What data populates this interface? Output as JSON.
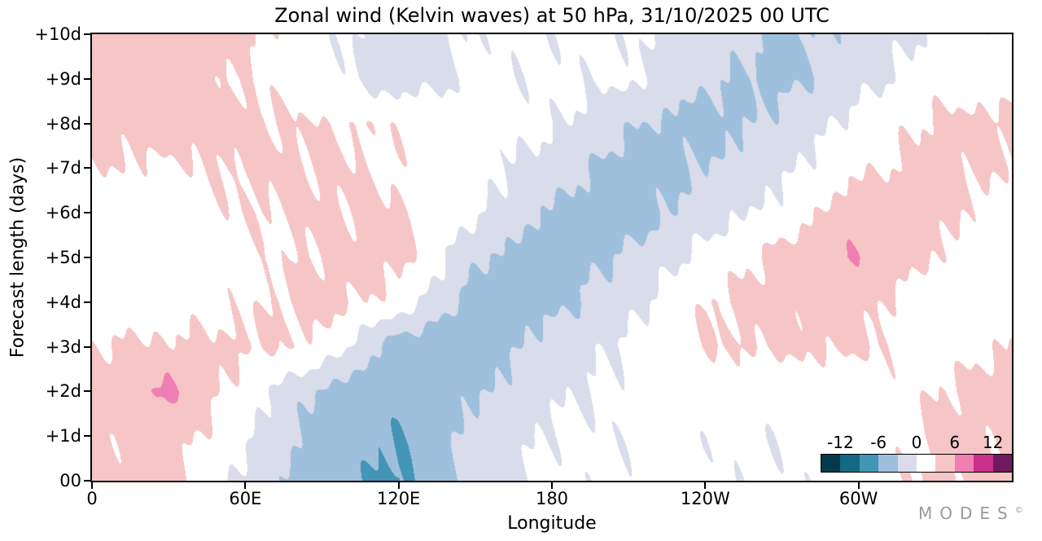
{
  "logo": {
    "text": "MODES",
    "mark": "©"
  },
  "chart_data": {
    "type": "heatmap",
    "title": "Zonal wind (Kelvin waves) at 50 hPa,  31/10/2025  00 UTC",
    "xlabel": "Longitude",
    "ylabel": "Forecast length (days)",
    "xlim_deg": [
      0,
      360
    ],
    "ylim_days": [
      0,
      10
    ],
    "x_ticks": [
      {
        "label": "0",
        "deg": 0
      },
      {
        "label": "60E",
        "deg": 60
      },
      {
        "label": "120E",
        "deg": 120
      },
      {
        "label": "180",
        "deg": 180
      },
      {
        "label": "120W",
        "deg": 240
      },
      {
        "label": "60W",
        "deg": 300
      }
    ],
    "y_ticks": [
      {
        "label": "00",
        "day": 0
      },
      {
        "label": "+1d",
        "day": 1
      },
      {
        "label": "+2d",
        "day": 2
      },
      {
        "label": "+3d",
        "day": 3
      },
      {
        "label": "+4d",
        "day": 4
      },
      {
        "label": "+5d",
        "day": 5
      },
      {
        "label": "+6d",
        "day": 6
      },
      {
        "label": "+7d",
        "day": 7
      },
      {
        "label": "+8d",
        "day": 8
      },
      {
        "label": "+9d",
        "day": 9
      },
      {
        "label": "+10d",
        "day": 10
      }
    ],
    "x_deg": [
      0,
      30,
      60,
      90,
      120,
      150,
      180,
      210,
      240,
      270,
      300,
      330,
      360
    ],
    "y_days": [
      0,
      1,
      2,
      3,
      4,
      5,
      6,
      7,
      8,
      9,
      10
    ],
    "values_by_forecast_day": [
      [
        3.5,
        4.0,
        -1.0,
        -5.0,
        -6.8,
        -1.5,
        0.8,
        0.5,
        0.5,
        0.5,
        1.0,
        3.5,
        3.5
      ],
      [
        3.5,
        4.5,
        0.5,
        -4.5,
        -6.0,
        -2.0,
        0.5,
        0.5,
        0.5,
        0.5,
        1.0,
        3.8,
        3.5
      ],
      [
        4.5,
        6.5,
        1.5,
        -3.5,
        -5.5,
        -3.5,
        -0.5,
        0.5,
        1.5,
        1.0,
        1.0,
        3.0,
        4.5
      ],
      [
        3.0,
        3.5,
        3.5,
        2.5,
        -5.0,
        -5.0,
        -1.5,
        0.5,
        3.0,
        3.5,
        3.5,
        1.5,
        3.0
      ],
      [
        1.0,
        1.5,
        2.5,
        4.0,
        2.0,
        -4.5,
        -4.0,
        -1.0,
        3.0,
        4.0,
        4.0,
        1.0,
        1.0
      ],
      [
        1.0,
        1.0,
        2.0,
        3.5,
        4.0,
        -2.5,
        -5.0,
        -2.5,
        1.0,
        4.0,
        6.0,
        3.0,
        1.0
      ],
      [
        1.5,
        1.0,
        3.0,
        3.5,
        3.5,
        0.5,
        -3.5,
        -5.0,
        -1.5,
        1.0,
        5.0,
        4.0,
        1.5
      ],
      [
        3.0,
        2.5,
        3.5,
        3.5,
        2.5,
        1.0,
        -1.5,
        -4.5,
        -3.0,
        -0.5,
        2.5,
        4.0,
        3.0
      ],
      [
        4.0,
        4.5,
        3.5,
        3.0,
        2.5,
        1.0,
        0.5,
        -2.5,
        -4.5,
        -2.0,
        1.0,
        3.5,
        4.0
      ],
      [
        4.0,
        4.0,
        3.0,
        1.0,
        -1.5,
        0.5,
        0.5,
        0.5,
        -2.5,
        -4.0,
        -1.0,
        1.5,
        1.5
      ],
      [
        4.0,
        4.5,
        3.5,
        1.0,
        -1.5,
        0.5,
        0.5,
        0.5,
        -1.5,
        -3.5,
        -2.0,
        0.5,
        1.0
      ]
    ],
    "colorbar": {
      "tick_labels": [
        "-12",
        "-6",
        "0",
        "6",
        "12"
      ],
      "levels": [
        -12,
        -9,
        -6,
        -3,
        0,
        3,
        6,
        9,
        12
      ],
      "colors": [
        "#06384c",
        "#156883",
        "#4295b4",
        "#9fc0dc",
        "#d9dcea",
        "#ffffff",
        "#f6c5c5",
        "#ef7fb3",
        "#cb2f8c",
        "#70195f"
      ]
    }
  }
}
